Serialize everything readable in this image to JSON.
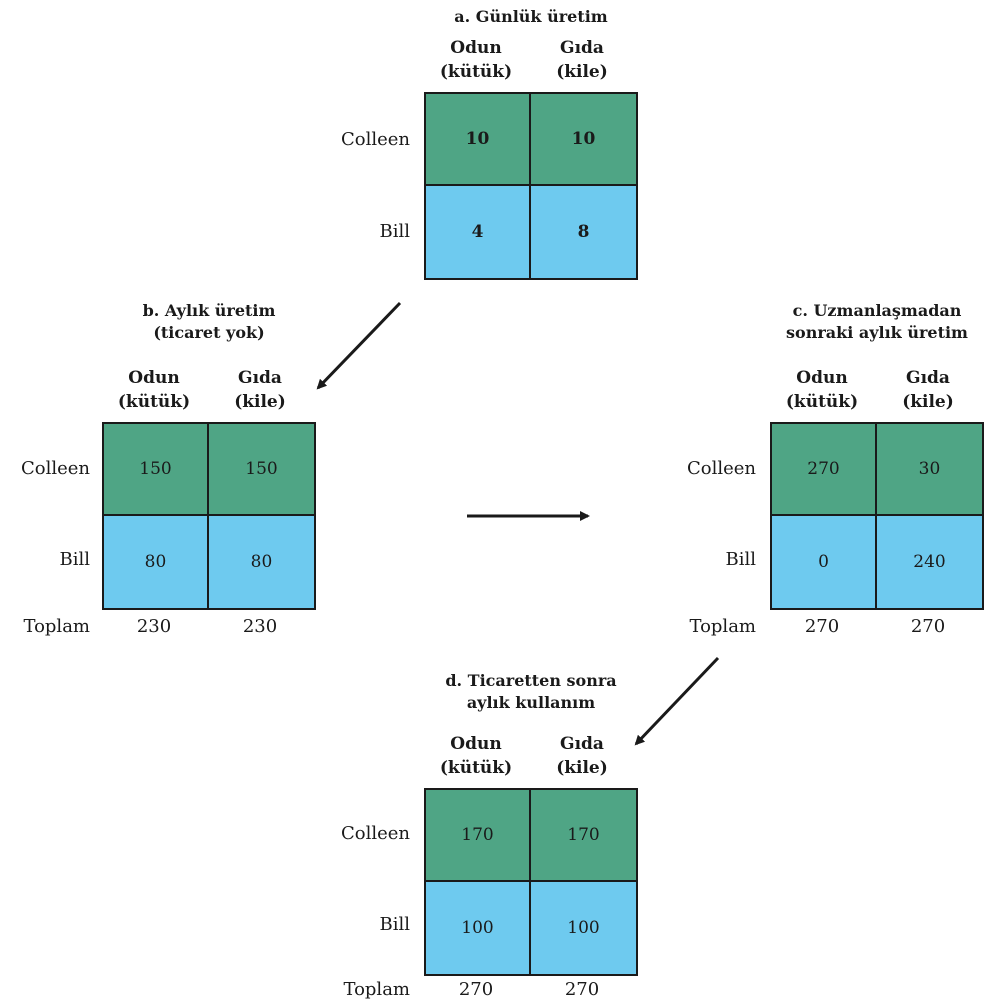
{
  "labels": {
    "wood": "Odun",
    "wood_unit": "(kütük)",
    "food": "Gıda",
    "food_unit": "(kile)",
    "colleen": "Colleen",
    "bill": "Bill",
    "total": "Toplam"
  },
  "panels": {
    "a": {
      "title_1": "a. Günlük üretim",
      "title_2": "",
      "colleen": [
        "10",
        "10"
      ],
      "bill": [
        "4",
        "8"
      ]
    },
    "b": {
      "title_1": "b. Aylık üretim",
      "title_2": "(ticaret yok)",
      "colleen": [
        "150",
        "150"
      ],
      "bill": [
        "80",
        "80"
      ],
      "totals": [
        "230",
        "230"
      ]
    },
    "c": {
      "title_1": "c. Uzmanlaşmadan",
      "title_2": "sonraki aylık üretim",
      "colleen": [
        "270",
        "30"
      ],
      "bill": [
        "0",
        "240"
      ],
      "totals": [
        "270",
        "270"
      ]
    },
    "d": {
      "title_1": "d. Ticaretten sonra",
      "title_2": "aylık kullanım",
      "colleen": [
        "170",
        "170"
      ],
      "bill": [
        "100",
        "100"
      ],
      "totals": [
        "270",
        "270"
      ]
    }
  },
  "colors": {
    "colleen_row": "#4fa585",
    "bill_row": "#6ecaef"
  }
}
